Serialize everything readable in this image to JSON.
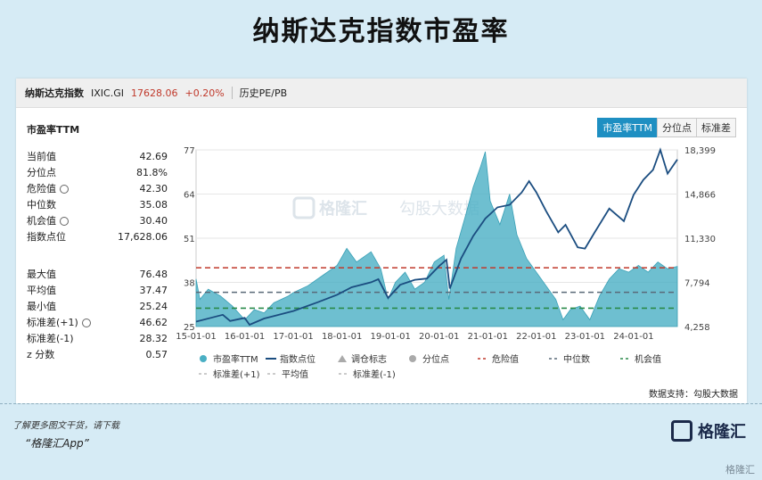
{
  "title": "纳斯达克指数市盈率",
  "header": {
    "name": "纳斯达克指数",
    "code": "IXIC.GI",
    "price": "17628.06",
    "change": "+0.20%",
    "link": "历史PE/PB"
  },
  "subtitle": "市盈率TTM",
  "tabs": [
    "市盈率TTM",
    "分位点",
    "标准差"
  ],
  "stats_top": [
    {
      "label": "当前值",
      "value": "42.69"
    },
    {
      "label": "分位点",
      "value": "81.8%"
    },
    {
      "label": "危险值",
      "value": "42.30",
      "gear": true
    },
    {
      "label": "中位数",
      "value": "35.08"
    },
    {
      "label": "机会值",
      "value": "30.40",
      "gear": true
    },
    {
      "label": "指数点位",
      "value": "17,628.06"
    }
  ],
  "stats_bottom": [
    {
      "label": "最大值",
      "value": "76.48"
    },
    {
      "label": "平均值",
      "value": "37.47"
    },
    {
      "label": "最小值",
      "value": "25.24"
    },
    {
      "label": "标准差(+1)",
      "value": "46.62",
      "gear": true
    },
    {
      "label": "标准差(-1)",
      "value": "28.32"
    },
    {
      "label": "z 分数",
      "value": "0.57"
    }
  ],
  "source": "数据支持：勾股大数据",
  "watermark1": "格隆汇",
  "watermark2": "勾股大数据",
  "footer": {
    "line1": "了解更多图文干货，请下载",
    "line2": "“格隆汇App”",
    "logo": "格隆汇",
    "wm": "格隆汇"
  },
  "colors": {
    "area": "#4aafc4",
    "index": "#1b4d80",
    "danger": "#c0392b",
    "median": "#5a6a78",
    "chance": "#2a8a4a",
    "active_tab": "#1e8fc2"
  },
  "chart_data": {
    "type": "area",
    "x_ticks": [
      "15-01-01",
      "16-01-01",
      "17-01-01",
      "18-01-01",
      "19-01-01",
      "20-01-01",
      "21-01-01",
      "22-01-01",
      "23-01-01",
      "24-01-01"
    ],
    "x_range": [
      2015.0,
      2024.9
    ],
    "y_left_ticks": [
      25,
      38,
      51,
      64,
      77
    ],
    "y_left_range": [
      25,
      77
    ],
    "y_right_ticks": [
      "4,258",
      "7,794",
      "11,330",
      "14,866",
      "18,399"
    ],
    "y_right_range": [
      4258,
      18399
    ],
    "reference_lines": [
      {
        "name": "危险值",
        "value": 42.3,
        "style": "dashed",
        "color": "#c0392b"
      },
      {
        "name": "中位数",
        "value": 35.08,
        "style": "dashed",
        "color": "#5a6a78"
      },
      {
        "name": "机会值",
        "value": 30.4,
        "style": "dashed",
        "color": "#2a8a4a"
      }
    ],
    "series": [
      {
        "name": "市盈率TTM",
        "type": "area",
        "axis": "left",
        "points": [
          [
            2015.0,
            39
          ],
          [
            2015.08,
            33
          ],
          [
            2015.25,
            36
          ],
          [
            2015.5,
            34
          ],
          [
            2015.75,
            31
          ],
          [
            2016.0,
            27
          ],
          [
            2016.2,
            30
          ],
          [
            2016.4,
            29
          ],
          [
            2016.6,
            32
          ],
          [
            2016.9,
            34
          ],
          [
            2017.0,
            35
          ],
          [
            2017.3,
            37
          ],
          [
            2017.6,
            40
          ],
          [
            2017.9,
            43
          ],
          [
            2018.1,
            48
          ],
          [
            2018.3,
            44
          ],
          [
            2018.6,
            47
          ],
          [
            2018.8,
            42
          ],
          [
            2018.95,
            33
          ],
          [
            2019.1,
            38
          ],
          [
            2019.3,
            41
          ],
          [
            2019.5,
            36
          ],
          [
            2019.7,
            38
          ],
          [
            2019.9,
            44
          ],
          [
            2020.1,
            46
          ],
          [
            2020.2,
            33
          ],
          [
            2020.35,
            48
          ],
          [
            2020.55,
            58
          ],
          [
            2020.7,
            66
          ],
          [
            2020.85,
            72
          ],
          [
            2020.95,
            76.48
          ],
          [
            2021.05,
            62
          ],
          [
            2021.25,
            55
          ],
          [
            2021.45,
            64
          ],
          [
            2021.6,
            52
          ],
          [
            2021.8,
            45
          ],
          [
            2022.0,
            41
          ],
          [
            2022.2,
            37
          ],
          [
            2022.4,
            33
          ],
          [
            2022.55,
            27
          ],
          [
            2022.7,
            30
          ],
          [
            2022.9,
            31
          ],
          [
            2023.1,
            27
          ],
          [
            2023.3,
            34
          ],
          [
            2023.5,
            39
          ],
          [
            2023.7,
            42
          ],
          [
            2023.9,
            41
          ],
          [
            2024.1,
            43
          ],
          [
            2024.3,
            41
          ],
          [
            2024.5,
            44
          ],
          [
            2024.7,
            42
          ],
          [
            2024.9,
            42.69
          ]
        ]
      },
      {
        "name": "指数点位",
        "type": "line",
        "axis": "right",
        "points": [
          [
            2015.0,
            4650
          ],
          [
            2015.3,
            4950
          ],
          [
            2015.55,
            5200
          ],
          [
            2015.7,
            4700
          ],
          [
            2016.0,
            4950
          ],
          [
            2016.1,
            4400
          ],
          [
            2016.4,
            4900
          ],
          [
            2016.6,
            5100
          ],
          [
            2016.9,
            5400
          ],
          [
            2017.0,
            5500
          ],
          [
            2017.5,
            6200
          ],
          [
            2017.9,
            6800
          ],
          [
            2018.2,
            7400
          ],
          [
            2018.6,
            7800
          ],
          [
            2018.75,
            8050
          ],
          [
            2018.95,
            6550
          ],
          [
            2019.2,
            7600
          ],
          [
            2019.5,
            8000
          ],
          [
            2019.75,
            8100
          ],
          [
            2020.0,
            9100
          ],
          [
            2020.15,
            9600
          ],
          [
            2020.22,
            7300
          ],
          [
            2020.45,
            9700
          ],
          [
            2020.7,
            11500
          ],
          [
            2020.95,
            12900
          ],
          [
            2021.2,
            13800
          ],
          [
            2021.45,
            14000
          ],
          [
            2021.7,
            15000
          ],
          [
            2021.85,
            15900
          ],
          [
            2022.0,
            15000
          ],
          [
            2022.2,
            13500
          ],
          [
            2022.45,
            11800
          ],
          [
            2022.6,
            12400
          ],
          [
            2022.85,
            10600
          ],
          [
            2023.0,
            10500
          ],
          [
            2023.2,
            11800
          ],
          [
            2023.5,
            13700
          ],
          [
            2023.8,
            12700
          ],
          [
            2024.0,
            14800
          ],
          [
            2024.2,
            16000
          ],
          [
            2024.4,
            16800
          ],
          [
            2024.55,
            18399
          ],
          [
            2024.7,
            16500
          ],
          [
            2024.9,
            17628
          ]
        ]
      }
    ],
    "legend": [
      {
        "label": "市盈率TTM",
        "marker": "circle",
        "color": "#4aafc4"
      },
      {
        "label": "指数点位",
        "marker": "line",
        "color": "#1b4d80"
      },
      {
        "label": "调仓标志",
        "marker": "triangle",
        "color": "#aaaaaa"
      },
      {
        "label": "分位点",
        "marker": "circle",
        "color": "#aaaaaa"
      },
      {
        "label": "危险值",
        "marker": "dash",
        "color": "#c0392b"
      },
      {
        "label": "中位数",
        "marker": "dash",
        "color": "#5a6a78"
      },
      {
        "label": "机会值",
        "marker": "dash",
        "color": "#2a8a4a"
      },
      {
        "label": "标准差(+1)",
        "marker": "dash",
        "color": "#bbbbbb"
      },
      {
        "label": "平均值",
        "marker": "dash",
        "color": "#bbbbbb"
      },
      {
        "label": "标准差(-1)",
        "marker": "dash",
        "color": "#bbbbbb"
      }
    ],
    "legend_position": "bottom"
  }
}
